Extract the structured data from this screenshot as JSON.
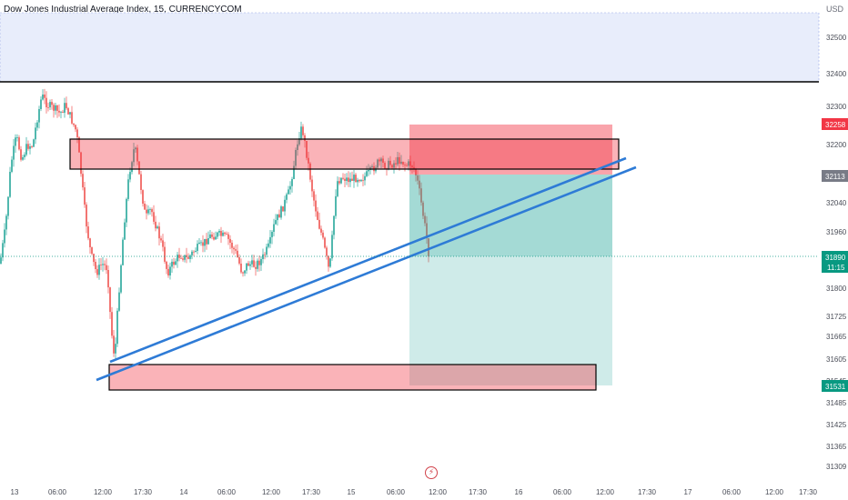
{
  "header": {
    "title": "Dow Jones Industrial Average Index, 15, CURRENCYCOM",
    "currency": "USD"
  },
  "chart_data": {
    "type": "candlestick",
    "symbol": "Dow Jones Industrial Average Index",
    "interval": "15",
    "source": "CURRENCYCOM",
    "price_axis": {
      "unit": "USD",
      "ticks": [
        32500,
        32400,
        32300,
        32200,
        32040,
        31960,
        31800,
        31725,
        31665,
        31605,
        31545,
        31485,
        31425,
        31365,
        31309
      ]
    },
    "time_axis": {
      "ticks": [
        "13",
        "06:00",
        "12:00",
        "17:30",
        "14",
        "06:00",
        "12:00",
        "17:30",
        "15",
        "06:00",
        "12:00",
        "17:30",
        "16",
        "06:00",
        "12:00",
        "17:30",
        "17",
        "06:00",
        "12:00",
        "17:30"
      ]
    },
    "price_labels": [
      {
        "value": "32258",
        "color": "#f23645"
      },
      {
        "value": "32113",
        "color": "#787b86"
      },
      {
        "value": "31890",
        "sub": "11:15",
        "color": "#089981"
      },
      {
        "value": "31531",
        "color": "#089981"
      }
    ],
    "colors": {
      "up": "#26a69a",
      "down": "#ef5350",
      "trendline": "#2e7bd6",
      "supply_zone": "#f7a6ad",
      "stop_zone": "#f7a6ad",
      "target_zone": "#b2dfdb",
      "top_band": "#e8edfb"
    },
    "indicator_icon": "flash-icon"
  }
}
